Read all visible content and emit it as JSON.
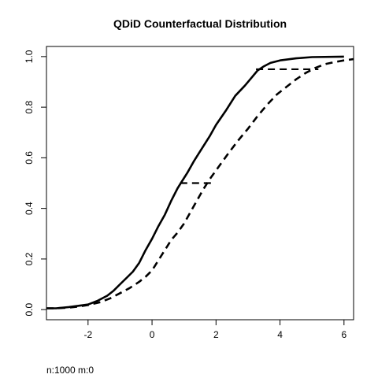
{
  "chart_data": {
    "type": "line",
    "title": "QDiD Counterfactual Distribution",
    "xlabel": "",
    "ylabel": "",
    "note": "n:1000 m:0",
    "xlim": [
      -3.3,
      6.3
    ],
    "ylim": [
      -0.04,
      1.04
    ],
    "x_ticks": [
      -2,
      0,
      2,
      4,
      6
    ],
    "x_tick_labels": [
      "-2",
      "0",
      "2",
      "4",
      "6"
    ],
    "y_ticks": [
      0.0,
      0.2,
      0.4,
      0.6,
      0.8,
      1.0
    ],
    "y_tick_labels": [
      "0.0",
      "0.2",
      "0.4",
      "0.6",
      "0.8",
      "1.0"
    ],
    "grid": false,
    "series": [
      {
        "style": "solid",
        "x": [
          -3.3,
          -3.0,
          -2.6,
          -2.3,
          -2.0,
          -1.7,
          -1.4,
          -1.2,
          -1.0,
          -0.8,
          -0.6,
          -0.4,
          -0.2,
          0.0,
          0.2,
          0.4,
          0.6,
          0.8,
          0.9,
          1.1,
          1.3,
          1.5,
          1.8,
          2.0,
          2.3,
          2.6,
          2.9,
          3.1,
          3.3,
          3.5,
          3.7,
          4.0,
          4.5,
          5.0,
          6.0
        ],
        "y": [
          0.005,
          0.005,
          0.01,
          0.015,
          0.02,
          0.035,
          0.055,
          0.075,
          0.1,
          0.125,
          0.15,
          0.185,
          0.235,
          0.28,
          0.33,
          0.375,
          0.43,
          0.48,
          0.5,
          0.54,
          0.585,
          0.625,
          0.685,
          0.73,
          0.785,
          0.845,
          0.885,
          0.915,
          0.945,
          0.962,
          0.975,
          0.985,
          0.993,
          0.998,
          1.0
        ]
      },
      {
        "style": "dashed",
        "x": [
          -3.3,
          -3.0,
          -2.6,
          -2.3,
          -2.0,
          -1.6,
          -1.3,
          -1.0,
          -0.7,
          -0.4,
          -0.2,
          0.0,
          0.2,
          0.4,
          0.6,
          0.8,
          1.0,
          1.2,
          1.4,
          1.6,
          1.8,
          2.0,
          2.2,
          2.4,
          2.7,
          3.0,
          3.3,
          3.6,
          3.9,
          4.2,
          4.5,
          4.8,
          5.1,
          5.4,
          5.7,
          6.0,
          6.3
        ],
        "y": [
          0.005,
          0.005,
          0.008,
          0.012,
          0.018,
          0.03,
          0.045,
          0.065,
          0.085,
          0.11,
          0.13,
          0.155,
          0.195,
          0.235,
          0.275,
          0.305,
          0.34,
          0.385,
          0.43,
          0.475,
          0.515,
          0.55,
          0.585,
          0.62,
          0.67,
          0.715,
          0.765,
          0.81,
          0.85,
          0.88,
          0.91,
          0.935,
          0.955,
          0.97,
          0.978,
          0.985,
          0.99
        ]
      }
    ],
    "horizontal_segments": [
      {
        "style": "dashed",
        "y": 0.5,
        "x_from": 0.88,
        "x_to": 1.85
      },
      {
        "style": "dashed",
        "y": 0.95,
        "x_from": 3.25,
        "x_to": 5.2
      }
    ]
  }
}
